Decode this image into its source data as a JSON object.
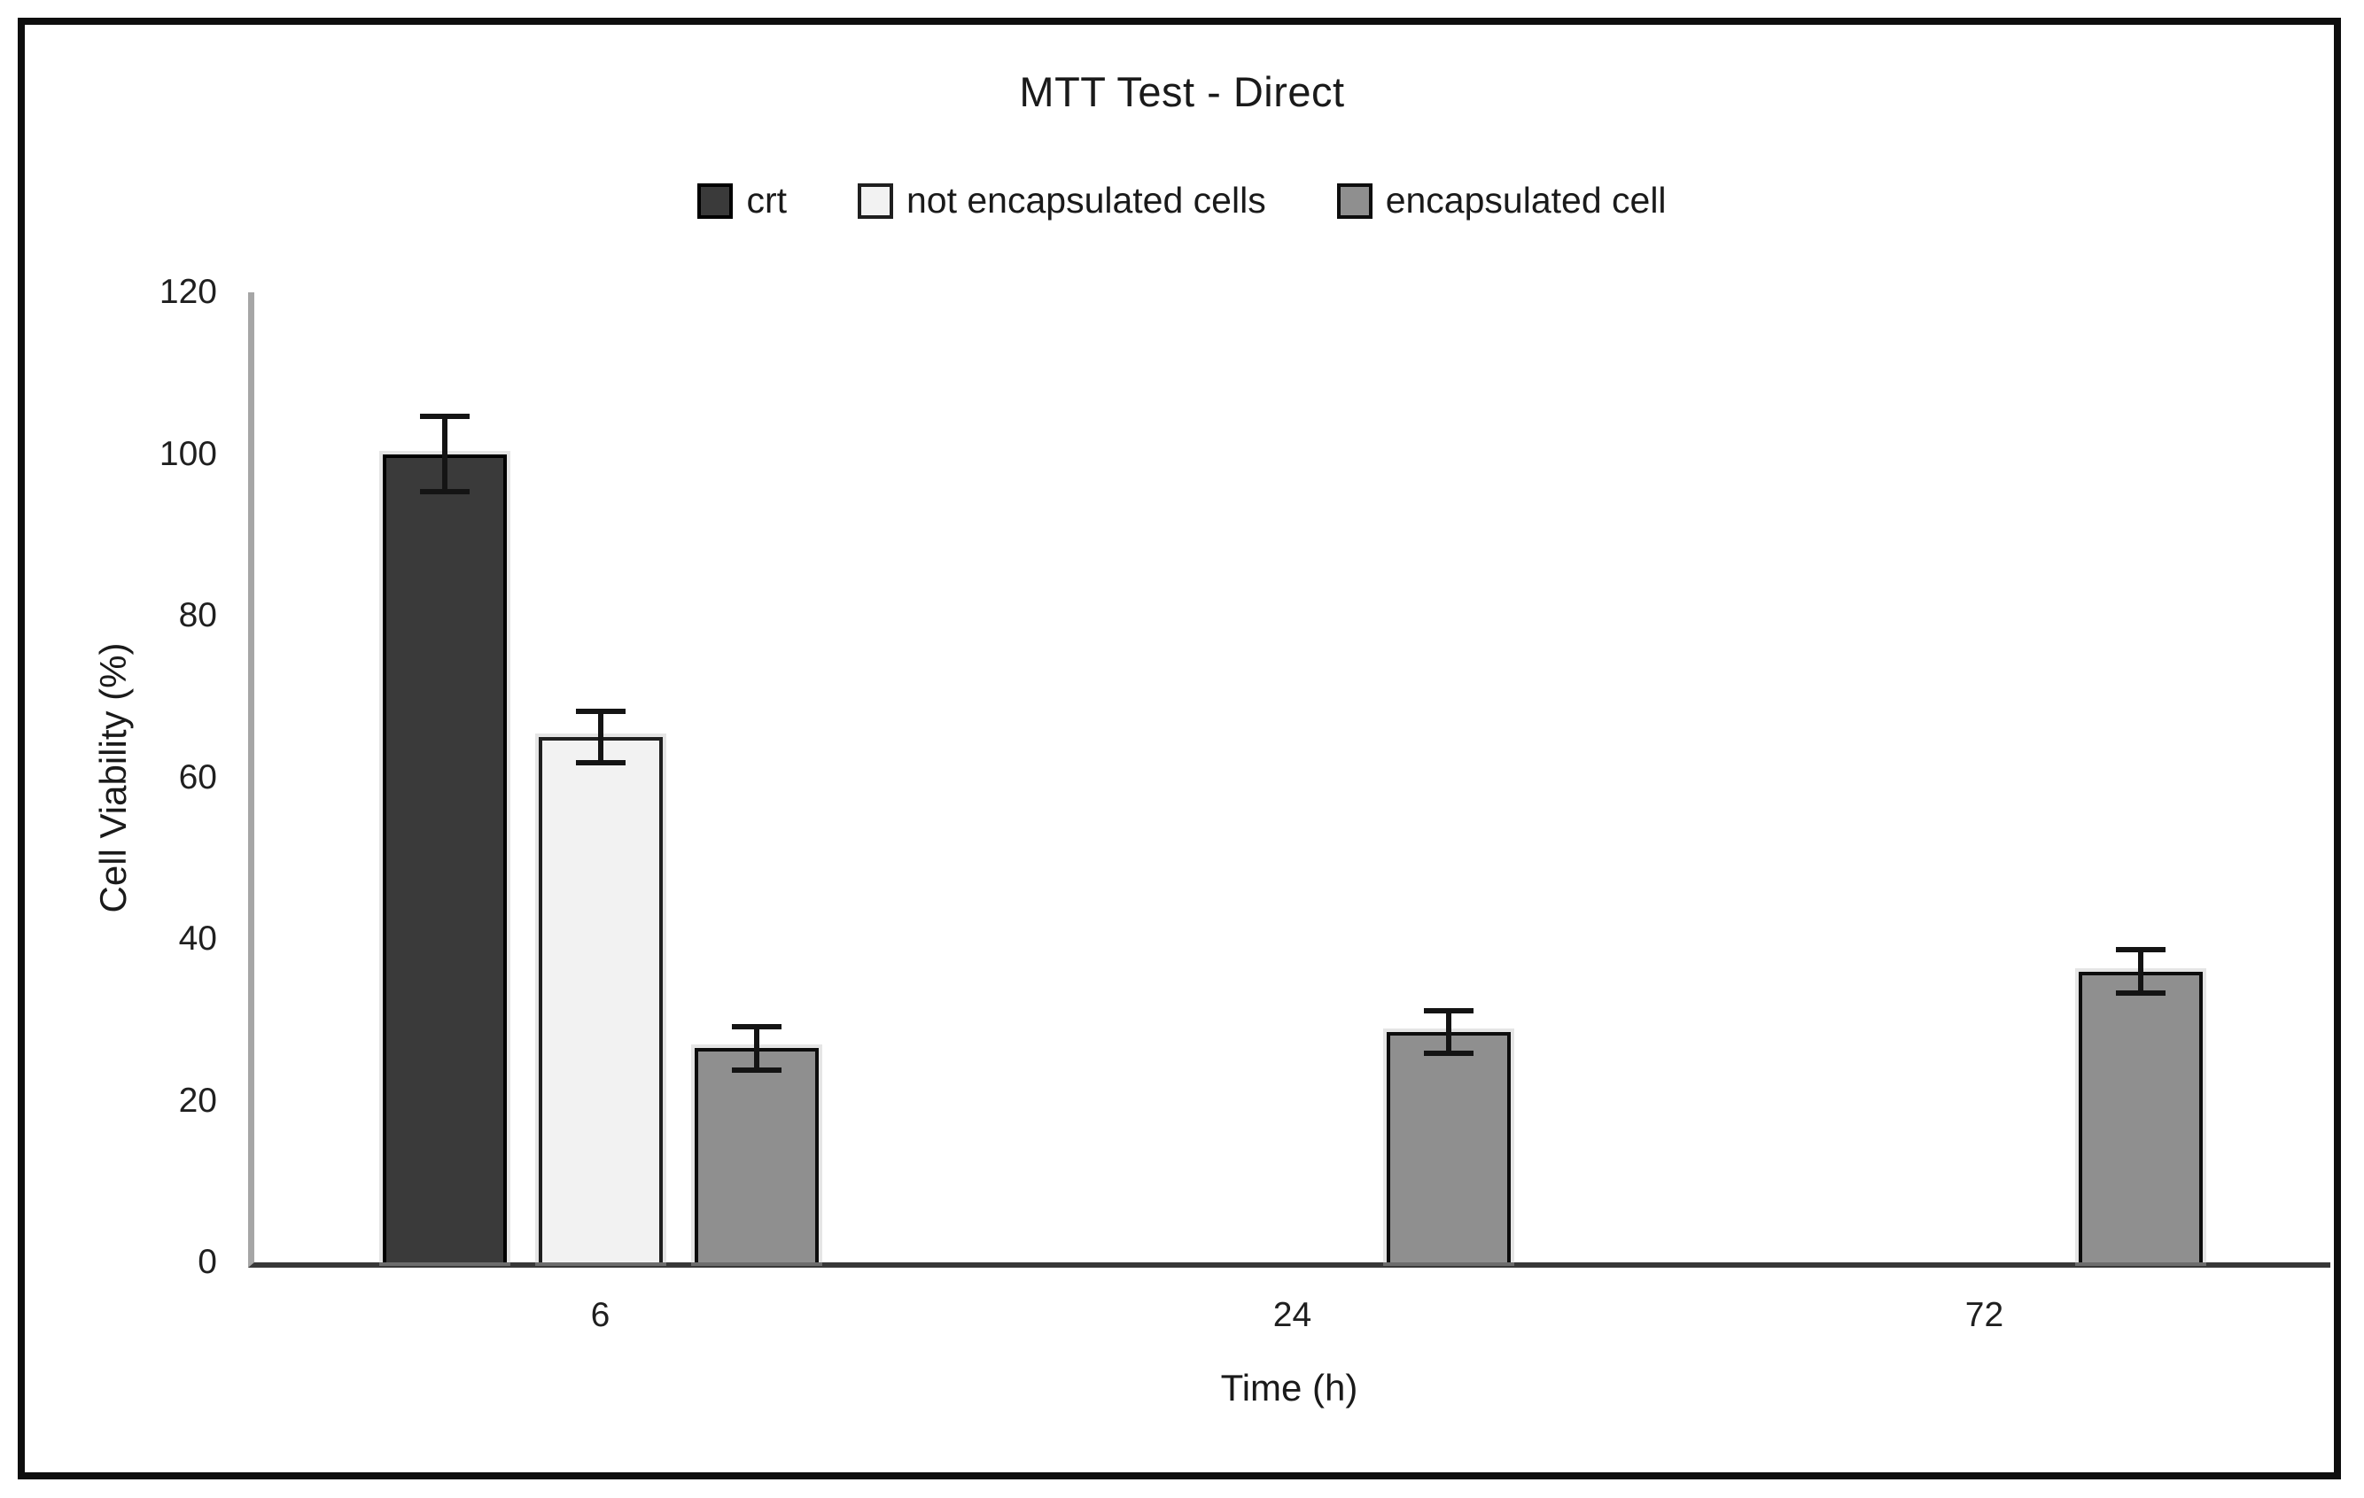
{
  "figure": {
    "kind": "static-chart-image"
  },
  "chart_data": {
    "type": "bar",
    "title": "MTT Test - Direct",
    "xlabel": "Time (h)",
    "ylabel": "Cell Viability (%)",
    "categories": [
      "6",
      "24",
      "72"
    ],
    "y_ticks": [
      0,
      20,
      40,
      60,
      80,
      100,
      120
    ],
    "ylim": [
      0,
      120
    ],
    "grid": false,
    "legend_position": "top-center",
    "error_bars": true,
    "axis_colors": {
      "y_axis_line": "#a6a6a6",
      "x_axis_line": "#383838",
      "text": "#1a1a1a"
    },
    "series": [
      {
        "name": "crt",
        "color": "#3a3a3a",
        "border_color": "#000000",
        "values": [
          100,
          null,
          null
        ],
        "errors": [
          5,
          null,
          null
        ]
      },
      {
        "name": "not encapsulated cells",
        "color": "#f2f2f2",
        "border_color": "#1f1f1f",
        "values": [
          65,
          null,
          null
        ],
        "errors": [
          3.5,
          null,
          null
        ]
      },
      {
        "name": "encapsulated cell",
        "color": "#8f8f8f",
        "border_color": "#0d0d0d",
        "values": [
          26.5,
          28.5,
          36
        ],
        "errors": [
          3,
          3,
          3
        ]
      }
    ]
  }
}
